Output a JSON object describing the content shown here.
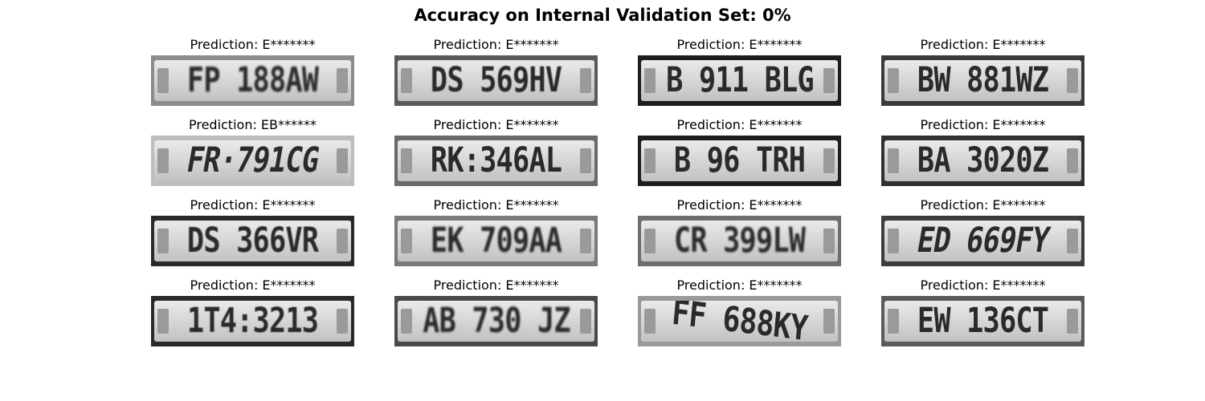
{
  "title": "Accuracy on Internal Validation Set: 0%",
  "panels": [
    {
      "prediction": "Prediction: E*******",
      "plate": "FP 188AW",
      "bg": "#8c8c8c",
      "style": "blur"
    },
    {
      "prediction": "Prediction: E*******",
      "plate": "DS 569HV",
      "bg": "#5a5a5a",
      "style": "soft"
    },
    {
      "prediction": "Prediction: E*******",
      "plate": "B 911 BLG",
      "bg": "#1e1e1e",
      "style": "plain"
    },
    {
      "prediction": "Prediction: E*******",
      "plate": "BW 881WZ",
      "bg": "#3a3a3a",
      "style": "plain"
    },
    {
      "prediction": "Prediction: EB******",
      "plate": "FR·791CG",
      "bg": "#bdbdbd",
      "style": "skew-left"
    },
    {
      "prediction": "Prediction: E*******",
      "plate": "RK:346AL",
      "bg": "#6a6a6a",
      "style": "plain"
    },
    {
      "prediction": "Prediction: E*******",
      "plate": "B 96 TRH",
      "bg": "#1e1e1e",
      "style": "plain"
    },
    {
      "prediction": "Prediction: E*******",
      "plate": "BA 3020Z",
      "bg": "#303030",
      "style": "plain"
    },
    {
      "prediction": "Prediction: E*******",
      "plate": "DS 366VR",
      "bg": "#2a2a2a",
      "style": "soft"
    },
    {
      "prediction": "Prediction: E*******",
      "plate": "EK 709AA",
      "bg": "#7a7a7a",
      "style": "blur"
    },
    {
      "prediction": "Prediction: E*******",
      "plate": "CR 399LW",
      "bg": "#6e6e6e",
      "style": "blur"
    },
    {
      "prediction": "Prediction: E*******",
      "plate": "ED 669FY",
      "bg": "#3c3c3c",
      "style": "skew-left"
    },
    {
      "prediction": "Prediction: E*******",
      "plate": "1T4:3213",
      "bg": "#2a2a2a",
      "style": "soft"
    },
    {
      "prediction": "Prediction: E*******",
      "plate": "AB 730 JZ",
      "bg": "#4a4a4a",
      "style": "blur"
    },
    {
      "prediction": "Prediction: E*******",
      "plate": "FF 688KY",
      "bg": "#9a9a9a",
      "style": "tilted"
    },
    {
      "prediction": "Prediction: E*******",
      "plate": "EW 136CT",
      "bg": "#5a5a5a",
      "style": "plain"
    }
  ]
}
